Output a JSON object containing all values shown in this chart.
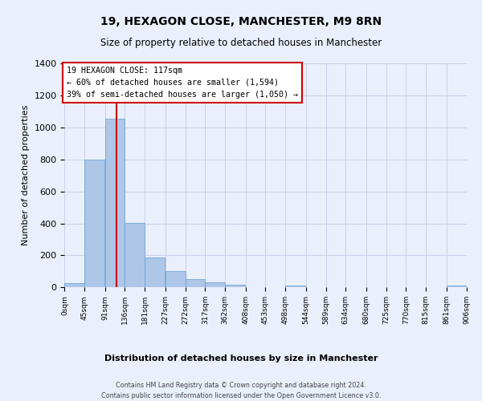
{
  "title": "19, HEXAGON CLOSE, MANCHESTER, M9 8RN",
  "subtitle": "Size of property relative to detached houses in Manchester",
  "xlabel": "Distribution of detached houses by size in Manchester",
  "ylabel": "Number of detached properties",
  "bar_color": "#aec6e8",
  "bar_edge_color": "#5a9fd4",
  "bg_color": "#eaf0fb",
  "grid_color": "#c8d0e8",
  "annotation_box_color": "#cc0000",
  "vline_color": "#cc0000",
  "footer_line1": "Contains HM Land Registry data © Crown copyright and database right 2024.",
  "footer_line2": "Contains public sector information licensed under the Open Government Licence v3.0.",
  "annotation_line1": "19 HEXAGON CLOSE: 117sqm",
  "annotation_line2": "← 60% of detached houses are smaller (1,594)",
  "annotation_line3": "39% of semi-detached houses are larger (1,050) →",
  "bin_edges": [
    0,
    45,
    91,
    136,
    181,
    227,
    272,
    317,
    362,
    408,
    453,
    498,
    544,
    589,
    634,
    680,
    725,
    770,
    815,
    861,
    906
  ],
  "bin_values": [
    25,
    800,
    1055,
    405,
    185,
    100,
    50,
    32,
    18,
    0,
    0,
    10,
    0,
    0,
    0,
    0,
    0,
    0,
    0,
    10
  ],
  "vline_x": 117,
  "ylim": [
    0,
    1400
  ],
  "yticks": [
    0,
    200,
    400,
    600,
    800,
    1000,
    1200,
    1400
  ]
}
